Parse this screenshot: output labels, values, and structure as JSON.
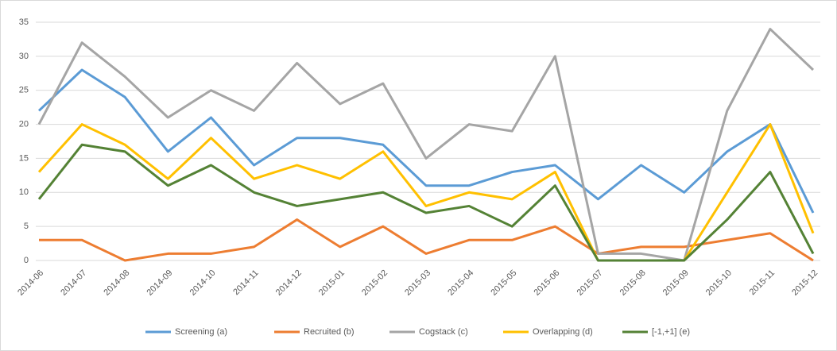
{
  "chart_data": {
    "type": "line",
    "categories": [
      "2014-06",
      "2014-07",
      "2014-08",
      "2014-09",
      "2014-10",
      "2014-11",
      "2014-12",
      "2015-01",
      "2015-02",
      "2015-03",
      "2015-04",
      "2015-05",
      "2015-06",
      "2015-07",
      "2015-08",
      "2015-09",
      "2015-10",
      "2015-11",
      "2015-12"
    ],
    "series": [
      {
        "name": "Screening (a)",
        "color": "#5b9bd5",
        "values": [
          22,
          28,
          24,
          16,
          21,
          14,
          18,
          18,
          17,
          11,
          11,
          13,
          14,
          9,
          14,
          10,
          16,
          20,
          7
        ]
      },
      {
        "name": "Recruited (b)",
        "color": "#ed7d31",
        "values": [
          3,
          3,
          0,
          1,
          1,
          2,
          6,
          2,
          5,
          1,
          3,
          3,
          5,
          1,
          2,
          2,
          3,
          4,
          0
        ]
      },
      {
        "name": "Cogstack (c)",
        "color": "#a5a5a5",
        "values": [
          20,
          32,
          27,
          21,
          25,
          22,
          29,
          23,
          26,
          15,
          20,
          19,
          30,
          1,
          1,
          0,
          22,
          34,
          28
        ]
      },
      {
        "name": "Overlapping (d)",
        "color": "#ffc000",
        "values": [
          13,
          20,
          17,
          12,
          18,
          12,
          14,
          12,
          16,
          8,
          10,
          9,
          13,
          0,
          0,
          0,
          10,
          20,
          4
        ]
      },
      {
        "name": "[-1,+1] (e)",
        "color": "#548235",
        "values": [
          9,
          17,
          16,
          11,
          14,
          10,
          8,
          9,
          10,
          7,
          8,
          5,
          11,
          0,
          0,
          0,
          6,
          13,
          1
        ]
      }
    ],
    "ylim": [
      0,
      35
    ],
    "yticks": [
      0,
      5,
      10,
      15,
      20,
      25,
      30,
      35
    ],
    "grid": true,
    "legend": "bottom"
  }
}
